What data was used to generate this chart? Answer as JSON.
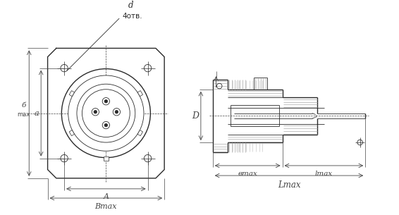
{
  "bg_color": "#ffffff",
  "line_color": "#2a2a2a",
  "dim_color": "#444444",
  "fig_width": 5.66,
  "fig_height": 3.05,
  "dpi": 100,
  "labels": {
    "d": "d",
    "4otv": "4отв.",
    "b_max_left": "б\nmax",
    "a_left": "a",
    "A_bottom": "A",
    "B_max_bottom": "Bmax",
    "D_side": "D",
    "b_max_side": "вmax",
    "l_max_side": "lmax",
    "L_max_side": "Lmax"
  }
}
